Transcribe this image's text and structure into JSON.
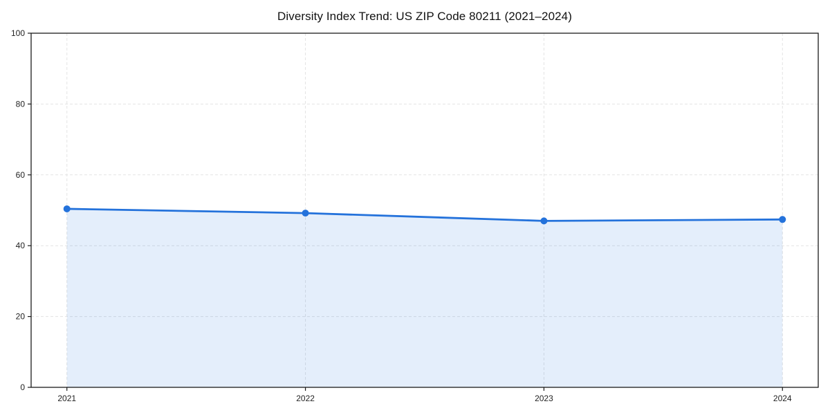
{
  "page": {
    "background": "#ffffff"
  },
  "chart_data": {
    "type": "area",
    "title": "Diversity Index Trend: US ZIP Code 80211 (2021–2024)",
    "series_name": "Diversity Index",
    "x": [
      2021,
      2022,
      2023,
      2024
    ],
    "values": [
      50.4,
      49.2,
      47.0,
      47.4
    ],
    "xlabel": "",
    "ylabel": "",
    "ylim": [
      0,
      100
    ],
    "yticks": [
      0,
      20,
      40,
      60,
      80,
      100
    ],
    "grid": true,
    "grid_style": "dashed",
    "legend": false,
    "marker": "circle",
    "colors": {
      "line": "#2472db",
      "marker": "#2472db",
      "fill": "rgba(36,114,219,0.12)",
      "grid": "#e3e3e3",
      "spine": "#1a1a1a",
      "tick_label": "#222222",
      "title": "#111111",
      "background": "#ffffff"
    }
  }
}
